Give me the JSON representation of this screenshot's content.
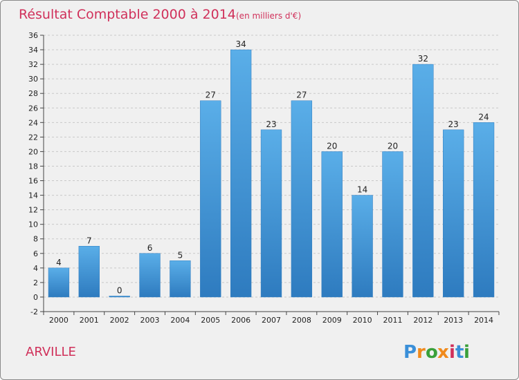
{
  "chart_data": {
    "type": "bar",
    "title": "Résultat Comptable 2000 à 2014",
    "subtitle": "(en milliers d'€)",
    "categories": [
      "2000",
      "2001",
      "2002",
      "2003",
      "2004",
      "2005",
      "2006",
      "2007",
      "2008",
      "2009",
      "2010",
      "2011",
      "2012",
      "2013",
      "2014"
    ],
    "values": [
      4,
      7,
      0,
      6,
      5,
      27,
      34,
      23,
      27,
      20,
      14,
      20,
      32,
      23,
      24
    ],
    "ylim": [
      -2,
      36
    ],
    "yticks": [
      -2,
      0,
      2,
      4,
      6,
      8,
      10,
      12,
      14,
      16,
      18,
      20,
      22,
      24,
      26,
      28,
      30,
      32,
      34,
      36
    ],
    "grid": true,
    "bar_color": "#4a9fe0",
    "bar_color_dark": "#2e7bbf"
  },
  "footer": {
    "city": "ARVILLE",
    "logo_letters": [
      "P",
      "r",
      "o",
      "x",
      "i",
      "t",
      "i"
    ],
    "logo_colors": [
      "#3a8fd8",
      "#f08a1c",
      "#3aa03a",
      "#f08a1c",
      "#d0305a",
      "#3a8fd8",
      "#3aa03a"
    ]
  }
}
